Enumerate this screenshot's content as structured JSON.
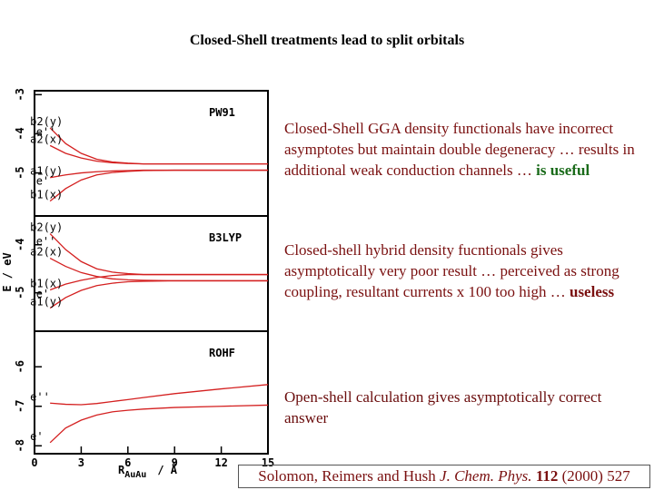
{
  "title": "Closed-Shell treatments lead to split orbitals",
  "notes": [
    {
      "text": "Closed-Shell GGA density functionals have incorrect asymptotes but maintain double degeneracy … results in additional weak conduction channels … ",
      "emphasis": "is useful"
    },
    {
      "text": "Closed-shell hybrid density fucntionals gives asymptotically very poor result … perceived as strong coupling, resultant currents x 100 too high … ",
      "emphasis": "useless"
    },
    {
      "text": "Open-shell calculation gives asymptotically correct answer"
    }
  ],
  "citation": {
    "authors": "Solomon, Reimers and Hush",
    "journal": "J. Chem. Phys.",
    "volume": "112",
    "rest": "(2000) 527"
  },
  "chart_data": [
    {
      "type": "line",
      "title": "PW91",
      "color": "#d42020",
      "x": [
        1,
        2,
        3,
        4,
        5,
        6,
        7,
        9,
        12,
        15
      ],
      "xlim": [
        0,
        15
      ],
      "ylim": [
        -6.1,
        -2.9
      ],
      "yticks": [
        -5,
        -4,
        -3
      ],
      "series": [
        {
          "name": "b2(y)",
          "values": [
            -3.85,
            -4.25,
            -4.5,
            -4.65,
            -4.72,
            -4.75,
            -4.77,
            -4.77,
            -4.77,
            -4.77
          ]
        },
        {
          "name": "a2(x)",
          "values": [
            -4.3,
            -4.5,
            -4.62,
            -4.7,
            -4.74,
            -4.76,
            -4.77,
            -4.77,
            -4.77,
            -4.77
          ]
        },
        {
          "name": "a1(y)",
          "values": [
            -5.12,
            -5.05,
            -5.0,
            -4.97,
            -4.95,
            -4.94,
            -4.93,
            -4.93,
            -4.93,
            -4.93
          ]
        },
        {
          "name": "b1(x)",
          "values": [
            -5.72,
            -5.4,
            -5.18,
            -5.05,
            -4.99,
            -4.96,
            -4.94,
            -4.93,
            -4.93,
            -4.93
          ]
        }
      ],
      "annotations": [
        {
          "text": "e''",
          "x": 0.1,
          "y": -4.05
        },
        {
          "text": "e'",
          "x": 0.1,
          "y": -5.3
        }
      ]
    },
    {
      "type": "line",
      "title": "B3LYP",
      "color": "#d42020",
      "x": [
        1,
        2,
        3,
        4,
        5,
        6,
        7,
        9,
        12,
        15
      ],
      "xlim": [
        0,
        15
      ],
      "ylim": [
        -5.8,
        -3.4
      ],
      "yticks": [
        -5,
        -4
      ],
      "series": [
        {
          "name": "b2(y)",
          "values": [
            -3.77,
            -4.1,
            -4.35,
            -4.5,
            -4.57,
            -4.6,
            -4.62,
            -4.62,
            -4.62,
            -4.62
          ]
        },
        {
          "name": "a2(x)",
          "values": [
            -4.28,
            -4.45,
            -4.58,
            -4.66,
            -4.71,
            -4.73,
            -4.74,
            -4.75,
            -4.75,
            -4.75
          ]
        },
        {
          "name": "b1(x)",
          "values": [
            -4.94,
            -4.82,
            -4.74,
            -4.68,
            -4.64,
            -4.62,
            -4.62,
            -4.62,
            -4.62,
            -4.62
          ]
        },
        {
          "name": "a1(y)",
          "values": [
            -5.32,
            -5.1,
            -4.95,
            -4.85,
            -4.8,
            -4.77,
            -4.76,
            -4.75,
            -4.75,
            -4.75
          ]
        }
      ],
      "ylabel": "E / eV",
      "annotations": [
        {
          "text": "e''",
          "x": 0.1,
          "y": -4.0
        },
        {
          "text": "e'",
          "x": 0.1,
          "y": -5.1
        }
      ]
    },
    {
      "type": "line",
      "title": "ROHF",
      "color": "#d42020",
      "x": [
        1,
        2,
        3,
        4,
        5,
        6,
        7,
        9,
        12,
        15
      ],
      "xlim": [
        0,
        15
      ],
      "ylim": [
        -8.2,
        -5.1
      ],
      "yticks": [
        -8,
        -7,
        -6
      ],
      "xticks": [
        0,
        3,
        6,
        9,
        12,
        15
      ],
      "xlabel": "R",
      "xlabel_sub": "AuAu",
      "xlabel_unit": "/ Å",
      "series": [
        {
          "name": "e''",
          "values": [
            -6.92,
            -6.95,
            -6.96,
            -6.93,
            -6.88,
            -6.83,
            -6.78,
            -6.68,
            -6.56,
            -6.45
          ]
        },
        {
          "name": "e'",
          "values": [
            -7.92,
            -7.55,
            -7.35,
            -7.22,
            -7.14,
            -7.1,
            -7.07,
            -7.03,
            -7.0,
            -6.97
          ]
        }
      ]
    }
  ]
}
